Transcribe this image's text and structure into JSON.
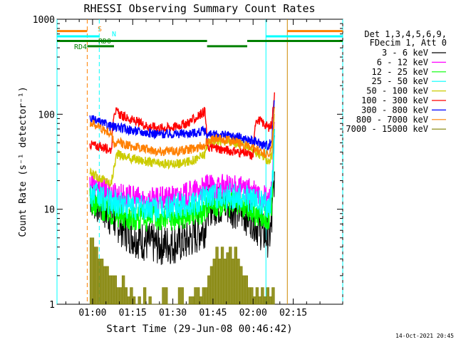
{
  "chart_data": {
    "type": "line",
    "title": "RHESSI Observing Summary Count Rates",
    "xlabel": "Start Time (29-Jun-08 00:46:42)",
    "ylabel": "Count Rate (s⁻¹ detector⁻¹)",
    "x_unit": "minutes after 00:00 UT, 29-Jun-08",
    "xlim": [
      46.7,
      153.5
    ],
    "ylim": [
      1,
      1000
    ],
    "y_scale": "log",
    "x_ticks": [
      {
        "value": 60,
        "label": "01:00"
      },
      {
        "value": 75,
        "label": "01:15"
      },
      {
        "value": 90,
        "label": "01:30"
      },
      {
        "value": 105,
        "label": "01:45"
      },
      {
        "value": 120,
        "label": "02:00"
      },
      {
        "value": 135,
        "label": "02:15"
      }
    ],
    "y_ticks": [
      {
        "value": 1,
        "label": "1"
      },
      {
        "value": 10,
        "label": "10"
      },
      {
        "value": 100,
        "label": "100"
      },
      {
        "value": 1000,
        "label": "1000"
      }
    ],
    "legend": {
      "placement": "right",
      "header": [
        "Det 1,3,4,5,6,9,",
        "FDecim 1, Att 0"
      ]
    },
    "series": [
      {
        "name": "3 - 6 keV",
        "color": "#000000",
        "x": [
          59,
          61,
          63,
          66,
          67,
          70,
          72,
          75,
          80,
          85,
          90,
          95,
          99,
          102,
          103,
          106,
          110,
          114,
          118,
          120,
          121,
          124,
          126,
          127,
          128
        ],
        "y": [
          14,
          12,
          11,
          8.8,
          8.2,
          7,
          6,
          5.3,
          4.5,
          4.2,
          4.3,
          4.6,
          5.5,
          6.5,
          11,
          11,
          11,
          10,
          8.5,
          8,
          7,
          5.5,
          5,
          7,
          25
        ]
      },
      {
        "name": "6 - 12 keV",
        "color": "#ff00ff",
        "x": [
          59,
          61,
          63,
          66,
          67,
          70,
          72,
          75,
          80,
          85,
          90,
          95,
          99,
          102,
          103,
          106,
          110,
          114,
          118,
          120,
          121,
          124,
          126,
          127,
          128
        ],
        "y": [
          19,
          17.5,
          16.5,
          15,
          14.5,
          14,
          13.5,
          13,
          12.5,
          12.5,
          13,
          14,
          15.5,
          16,
          17,
          17,
          17,
          16.5,
          15.5,
          15,
          14,
          13,
          12.5,
          16,
          80
        ]
      },
      {
        "name": "12 - 25 keV",
        "color": "#00ff00",
        "x": [
          59,
          61,
          63,
          66,
          67,
          70,
          72,
          75,
          80,
          85,
          90,
          95,
          99,
          102,
          103,
          106,
          110,
          114,
          118,
          120,
          121,
          124,
          126,
          127,
          128
        ],
        "y": [
          12.5,
          11.5,
          10.5,
          9.5,
          9.2,
          8.8,
          8.5,
          8.2,
          8,
          8,
          8.2,
          8.6,
          9.3,
          10,
          11.5,
          11.5,
          11.5,
          11,
          10,
          9.5,
          9,
          8.5,
          8,
          11,
          60
        ]
      },
      {
        "name": "25 - 50 keV",
        "color": "#00ffff",
        "x": [
          59,
          61,
          63,
          66,
          67,
          70,
          72,
          75,
          80,
          85,
          90,
          95,
          99,
          102,
          103,
          106,
          110,
          114,
          118,
          120,
          121,
          124,
          126,
          127,
          128
        ],
        "y": [
          15,
          14,
          13,
          12,
          11.8,
          11.5,
          11,
          10.5,
          10.2,
          10.2,
          10.5,
          11,
          12,
          13,
          14,
          14,
          14,
          13.5,
          13,
          12.5,
          12,
          11.5,
          11,
          14,
          70
        ]
      },
      {
        "name": "50 - 100 keV",
        "color": "#cccc00",
        "x": [
          59,
          62,
          65,
          66,
          67,
          69,
          72,
          75,
          80,
          85,
          90,
          95,
          99,
          102,
          103,
          106,
          110,
          114,
          118,
          120,
          121,
          124,
          126,
          127,
          128
        ],
        "y": [
          24,
          22,
          20,
          19,
          19,
          38,
          36,
          34,
          32,
          30,
          30,
          31,
          34,
          38,
          50,
          52,
          52,
          50,
          46,
          43,
          40,
          35,
          32,
          36,
          100
        ]
      },
      {
        "name": "100 - 300 keV",
        "color": "#ff0000",
        "x": [
          59,
          62,
          65,
          67,
          68,
          71,
          75,
          80,
          85,
          90,
          95,
          99,
          102,
          103,
          106,
          110,
          114,
          118,
          120,
          121,
          124,
          126,
          127,
          128
        ],
        "y": [
          48,
          46,
          44,
          42,
          110,
          96,
          86,
          76,
          72,
          73,
          80,
          92,
          110,
          45,
          44,
          42,
          40,
          38,
          36,
          90,
          80,
          72,
          80,
          170
        ]
      },
      {
        "name": "300 - 800 keV",
        "color": "#0000ff",
        "x": [
          59,
          62,
          65,
          67,
          70,
          75,
          80,
          85,
          90,
          95,
          99,
          102,
          103,
          106,
          110,
          114,
          118,
          120,
          121,
          124,
          126,
          127,
          128
        ],
        "y": [
          90,
          83,
          78,
          74,
          72,
          68,
          64,
          62,
          62,
          63,
          64,
          67,
          60,
          61,
          60,
          58,
          54,
          52,
          51,
          48,
          47,
          55,
          140
        ]
      },
      {
        "name": "800 - 7000 keV",
        "color": "#ff8000",
        "x": [
          59,
          62,
          65,
          67,
          68,
          70,
          75,
          80,
          85,
          90,
          95,
          99,
          102,
          103,
          106,
          110,
          114,
          118,
          120,
          121,
          124,
          126,
          127,
          128
        ],
        "y": [
          82,
          75,
          66,
          62,
          48,
          50,
          46,
          43,
          41,
          41,
          42,
          44,
          48,
          53,
          55,
          54,
          51,
          46,
          43,
          42,
          39,
          37,
          45,
          120
        ]
      },
      {
        "name": "7000 - 15000 keV",
        "color": "#808000",
        "x": [
          59,
          60.5,
          61,
          62,
          63,
          64,
          65,
          66,
          67,
          68,
          69,
          70,
          71,
          72,
          73,
          74,
          75,
          76,
          77,
          78,
          79,
          80,
          81,
          82,
          84,
          86,
          88,
          90,
          92,
          94,
          96,
          98,
          100,
          101,
          102,
          103,
          104,
          105,
          106,
          107,
          108,
          109,
          110,
          111,
          112,
          113,
          114,
          115,
          116,
          117,
          118,
          119,
          120,
          121,
          122,
          123,
          124,
          125,
          126,
          127,
          128
        ],
        "y": [
          5,
          4,
          4,
          3,
          3,
          2.5,
          2.5,
          2,
          2,
          2,
          1.5,
          1.5,
          2,
          1.5,
          1.2,
          1.5,
          1.2,
          1,
          1.2,
          1,
          1.5,
          1,
          1.2,
          1,
          1,
          1.5,
          1,
          1,
          1.5,
          1,
          1.2,
          1.5,
          1.2,
          1.5,
          1.5,
          2,
          2.5,
          3,
          4,
          3,
          4,
          3,
          3.5,
          4,
          3,
          4,
          3,
          2.5,
          2,
          2,
          1.5,
          1.5,
          1.2,
          1.5,
          1.2,
          1.5,
          1.2,
          1.5,
          1.2,
          1.5,
          25
        ]
      }
    ],
    "vertical_markers": [
      {
        "x": 46.7,
        "color": "#00ffff",
        "style": "solid"
      },
      {
        "x": 58,
        "color": "#ff8000",
        "style": "dashed"
      },
      {
        "x": 62.5,
        "color": "#00ffff",
        "style": "dashed"
      },
      {
        "x": 124.8,
        "color": "#00ffff",
        "style": "solid"
      },
      {
        "x": 132.8,
        "color": "#cc8800",
        "style": "solid"
      },
      {
        "x": 153.5,
        "color": "#00ffff",
        "style": "dashed"
      }
    ],
    "state_bars": [
      {
        "label": "S",
        "color": "#ff8000",
        "y": 750,
        "segments": [
          [
            46.7,
            58
          ],
          [
            132.8,
            153.5
          ]
        ]
      },
      {
        "label": "N",
        "color": "#00ffff",
        "y": 660,
        "segments": [
          [
            46.7,
            62.5
          ],
          [
            124.8,
            153.5
          ]
        ]
      },
      {
        "label": "RD0",
        "color": "#008000",
        "y": 590,
        "segments": [
          [
            46.7,
            102.8
          ],
          [
            117.8,
            153.5
          ]
        ]
      },
      {
        "label": "RD4",
        "color": "#008000",
        "y": 520,
        "segments": [
          [
            58,
            68
          ],
          [
            102.8,
            117.8
          ]
        ]
      }
    ],
    "footer": "14-Oct-2021 20:45"
  }
}
